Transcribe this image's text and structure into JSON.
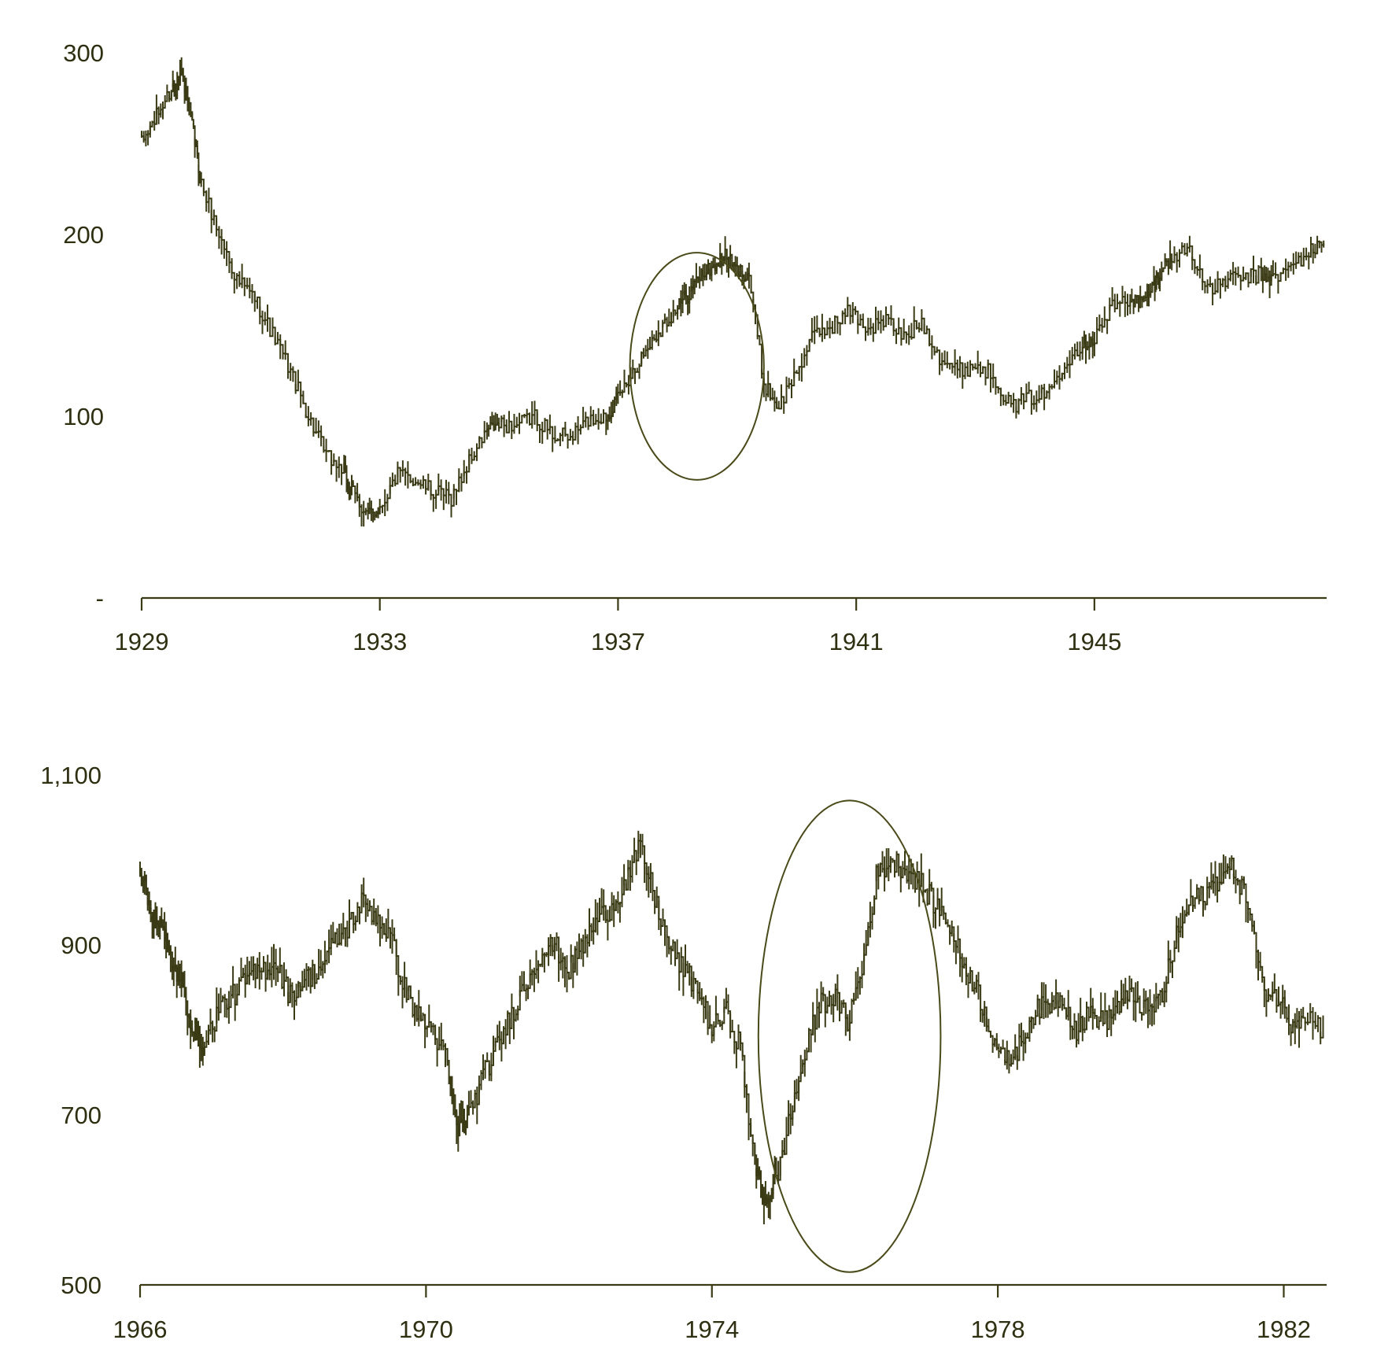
{
  "colors": {
    "line": "#3a3a14",
    "text": "#2f2f12",
    "background": "#ffffff"
  },
  "chart_data": [
    {
      "type": "line",
      "style": "monthly high-low-close bars",
      "title": "",
      "xlabel": "",
      "ylabel": "",
      "grid": false,
      "xlim": [
        1929.0,
        1948.9
      ],
      "ylim": [
        0,
        300
      ],
      "y_ticks": [
        {
          "value": 0,
          "label": "-"
        },
        {
          "value": 100,
          "label": "100"
        },
        {
          "value": 200,
          "label": "200"
        },
        {
          "value": 300,
          "label": "300"
        }
      ],
      "x_ticks": [
        {
          "value": 1929,
          "label": "1929"
        },
        {
          "value": 1933,
          "label": "1933"
        },
        {
          "value": 1937,
          "label": "1937"
        },
        {
          "value": 1941,
          "label": "1941"
        },
        {
          "value": 1945,
          "label": "1945"
        }
      ],
      "series": [
        {
          "x": [
            1929.0,
            1929.25,
            1929.5,
            1929.67,
            1929.85,
            1930.0,
            1930.3,
            1930.6,
            1930.9,
            1931.2,
            1931.5,
            1931.8,
            1932.1,
            1932.4,
            1932.55,
            1932.8,
            1933.0,
            1933.3,
            1933.6,
            1933.9,
            1934.2,
            1934.5,
            1934.8,
            1935.0,
            1935.3,
            1935.6,
            1935.9,
            1936.2,
            1936.5,
            1936.8,
            1937.0,
            1937.25,
            1937.5,
            1937.75,
            1938.0,
            1938.2,
            1938.4,
            1938.6,
            1938.8,
            1939.0,
            1939.2,
            1939.45,
            1939.7,
            1940.0,
            1940.3,
            1940.6,
            1940.9,
            1941.2,
            1941.5,
            1941.8,
            1942.1,
            1942.4,
            1942.7,
            1943.0,
            1943.3,
            1943.6,
            1943.9,
            1944.2,
            1944.5,
            1944.8,
            1945.0,
            1945.3,
            1945.6,
            1945.8,
            1946.0,
            1946.1,
            1946.3,
            1946.6,
            1946.9,
            1947.2,
            1947.5,
            1947.8,
            1948.0,
            1948.3,
            1948.6,
            1948.85
          ],
          "y": [
            250,
            265,
            280,
            290,
            260,
            228,
            200,
            175,
            165,
            145,
            125,
            100,
            78,
            70,
            58,
            45,
            50,
            68,
            65,
            58,
            55,
            75,
            92,
            95,
            95,
            100,
            90,
            88,
            98,
            100,
            110,
            125,
            138,
            150,
            160,
            168,
            178,
            182,
            188,
            180,
            178,
            118,
            105,
            125,
            145,
            150,
            158,
            148,
            153,
            143,
            152,
            133,
            125,
            128,
            123,
            105,
            110,
            112,
            130,
            140,
            143,
            160,
            165,
            162,
            172,
            180,
            187,
            193,
            168,
            175,
            176,
            178,
            175,
            182,
            190,
            195
          ]
        }
      ],
      "annotations": [
        {
          "type": "ellipse",
          "x_range": [
            1937.2,
            1939.45
          ],
          "y_range": [
            65,
            190
          ]
        }
      ]
    },
    {
      "type": "line",
      "style": "monthly high-low-close bars",
      "title": "",
      "xlabel": "",
      "ylabel": "",
      "grid": false,
      "xlim": [
        1966.0,
        1982.6
      ],
      "ylim": [
        500,
        1100
      ],
      "y_ticks": [
        {
          "value": 500,
          "label": "500"
        },
        {
          "value": 700,
          "label": "700"
        },
        {
          "value": 900,
          "label": "900"
        },
        {
          "value": 1100,
          "label": "1,100"
        }
      ],
      "x_ticks": [
        {
          "value": 1966,
          "label": "1966"
        },
        {
          "value": 1970,
          "label": "1970"
        },
        {
          "value": 1974,
          "label": "1974"
        },
        {
          "value": 1978,
          "label": "1978"
        },
        {
          "value": 1982,
          "label": "1982"
        }
      ],
      "series": [
        {
          "x": [
            1966.0,
            1966.15,
            1966.3,
            1966.45,
            1966.6,
            1966.75,
            1966.9,
            1967.1,
            1967.3,
            1967.5,
            1967.7,
            1967.9,
            1968.1,
            1968.3,
            1968.5,
            1968.7,
            1968.9,
            1969.1,
            1969.3,
            1969.5,
            1969.7,
            1969.9,
            1970.1,
            1970.3,
            1970.45,
            1970.6,
            1970.8,
            1971.0,
            1971.2,
            1971.4,
            1971.6,
            1971.8,
            1972.0,
            1972.2,
            1972.4,
            1972.6,
            1972.8,
            1973.0,
            1973.2,
            1973.4,
            1973.6,
            1973.8,
            1974.0,
            1974.2,
            1974.4,
            1974.6,
            1974.75,
            1974.9,
            1975.1,
            1975.3,
            1975.5,
            1975.7,
            1975.9,
            1976.1,
            1976.3,
            1976.5,
            1976.7,
            1976.9,
            1977.1,
            1977.3,
            1977.5,
            1977.7,
            1977.9,
            1978.1,
            1978.3,
            1978.5,
            1978.7,
            1978.9,
            1979.1,
            1979.3,
            1979.5,
            1979.7,
            1979.9,
            1980.1,
            1980.3,
            1980.5,
            1980.7,
            1980.9,
            1981.1,
            1981.3,
            1981.5,
            1981.7,
            1981.9,
            1982.1,
            1982.3,
            1982.55
          ],
          "y": [
            990,
            940,
            920,
            880,
            850,
            800,
            780,
            825,
            840,
            860,
            870,
            880,
            840,
            860,
            870,
            900,
            920,
            950,
            935,
            910,
            850,
            815,
            800,
            760,
            680,
            700,
            745,
            780,
            820,
            855,
            890,
            900,
            870,
            900,
            930,
            945,
            975,
            1015,
            955,
            900,
            870,
            850,
            800,
            820,
            780,
            640,
            600,
            620,
            700,
            770,
            830,
            840,
            810,
            870,
            980,
            1000,
            990,
            975,
            950,
            930,
            880,
            850,
            800,
            760,
            780,
            820,
            830,
            840,
            800,
            820,
            810,
            830,
            840,
            820,
            840,
            910,
            950,
            960,
            980,
            990,
            950,
            850,
            840,
            810,
            820,
            800
          ]
        }
      ],
      "annotations": [
        {
          "type": "ellipse",
          "x_range": [
            1974.65,
            1977.2
          ],
          "y_range": [
            515,
            1070
          ]
        }
      ]
    }
  ]
}
